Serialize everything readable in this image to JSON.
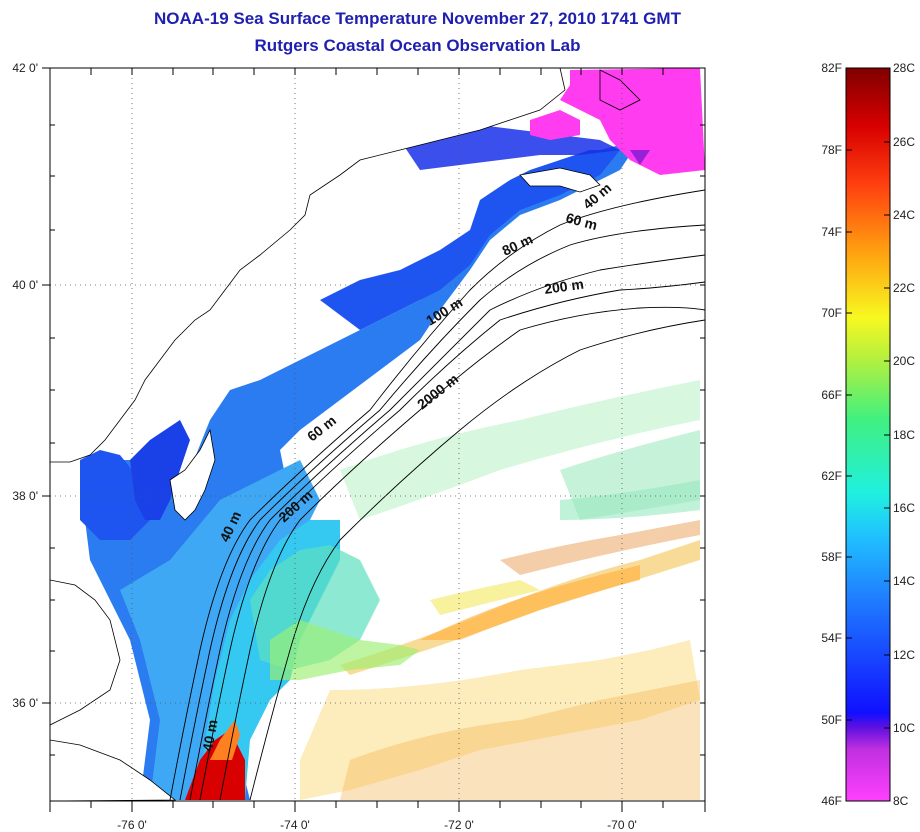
{
  "title_line1": "NOAA-19 Sea Surface Temperature November 27, 2010 1741 GMT",
  "title_line2": "Rutgers Coastal Ocean Observation Lab",
  "map": {
    "lon_labels": [
      "-76 0'",
      "-74 0'",
      "-72 0'",
      "-70 0'"
    ],
    "lat_labels": [
      "42 0'",
      "40 0'",
      "38 0'",
      "36 0'"
    ],
    "contour_labels": [
      "40 m",
      "60 m",
      "80 m",
      "200 m",
      "100 m",
      "2000 m",
      "60 m",
      "200 m",
      "40 m",
      "40 m"
    ]
  },
  "colorbar": {
    "fahrenheit": [
      "82F",
      "78F",
      "74F",
      "70F",
      "66F",
      "62F",
      "58F",
      "54F",
      "50F",
      "46F"
    ],
    "celsius": [
      "28C",
      "26C",
      "24C",
      "22C",
      "20C",
      "18C",
      "16C",
      "14C",
      "12C",
      "10C",
      "8C"
    ],
    "colors": [
      "#ff40ff",
      "#9020d0",
      "#1010ff",
      "#2090ff",
      "#20e0ff",
      "#20e8a0",
      "#90f060",
      "#f0f020",
      "#ffa010",
      "#ff4010",
      "#d00000",
      "#800000"
    ]
  }
}
